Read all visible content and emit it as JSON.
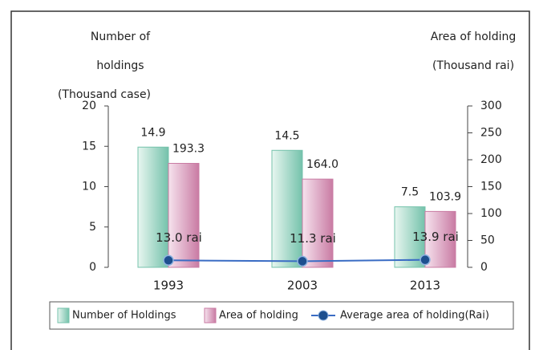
{
  "chart_data": {
    "type": "bar",
    "categories": [
      "1993",
      "2003",
      "2013"
    ],
    "ylabel": [
      "Number of",
      "holdings",
      "(Thousand case)"
    ],
    "y2label": [
      "Area of holding",
      "(Thousand rai)"
    ],
    "ylim": [
      0,
      20
    ],
    "yticks": [
      0,
      5,
      10,
      15,
      20
    ],
    "y2lim": [
      0,
      300
    ],
    "y2ticks": [
      0,
      50,
      100,
      150,
      200,
      250,
      300
    ],
    "legend": "bottom",
    "series": [
      {
        "name": "Number of Holdings",
        "type": "bar",
        "color": "#74c2ab",
        "values": [
          14.9,
          14.5,
          7.5
        ]
      },
      {
        "name": "Area of holding",
        "type": "bar",
        "axis": "y2",
        "color": "#c97ba3",
        "values": [
          193.3,
          164.0,
          103.9
        ],
        "value_labels": [
          "193.3",
          "164.0",
          "103.9"
        ]
      },
      {
        "name": "Average area of holding(Rai)",
        "type": "line",
        "axis": "y2",
        "color": "#3a6cc4",
        "values": [
          13.0,
          11.3,
          13.9
        ],
        "value_labels": [
          "13.0 rai",
          "11.3 rai",
          "13.9 rai"
        ]
      }
    ]
  }
}
